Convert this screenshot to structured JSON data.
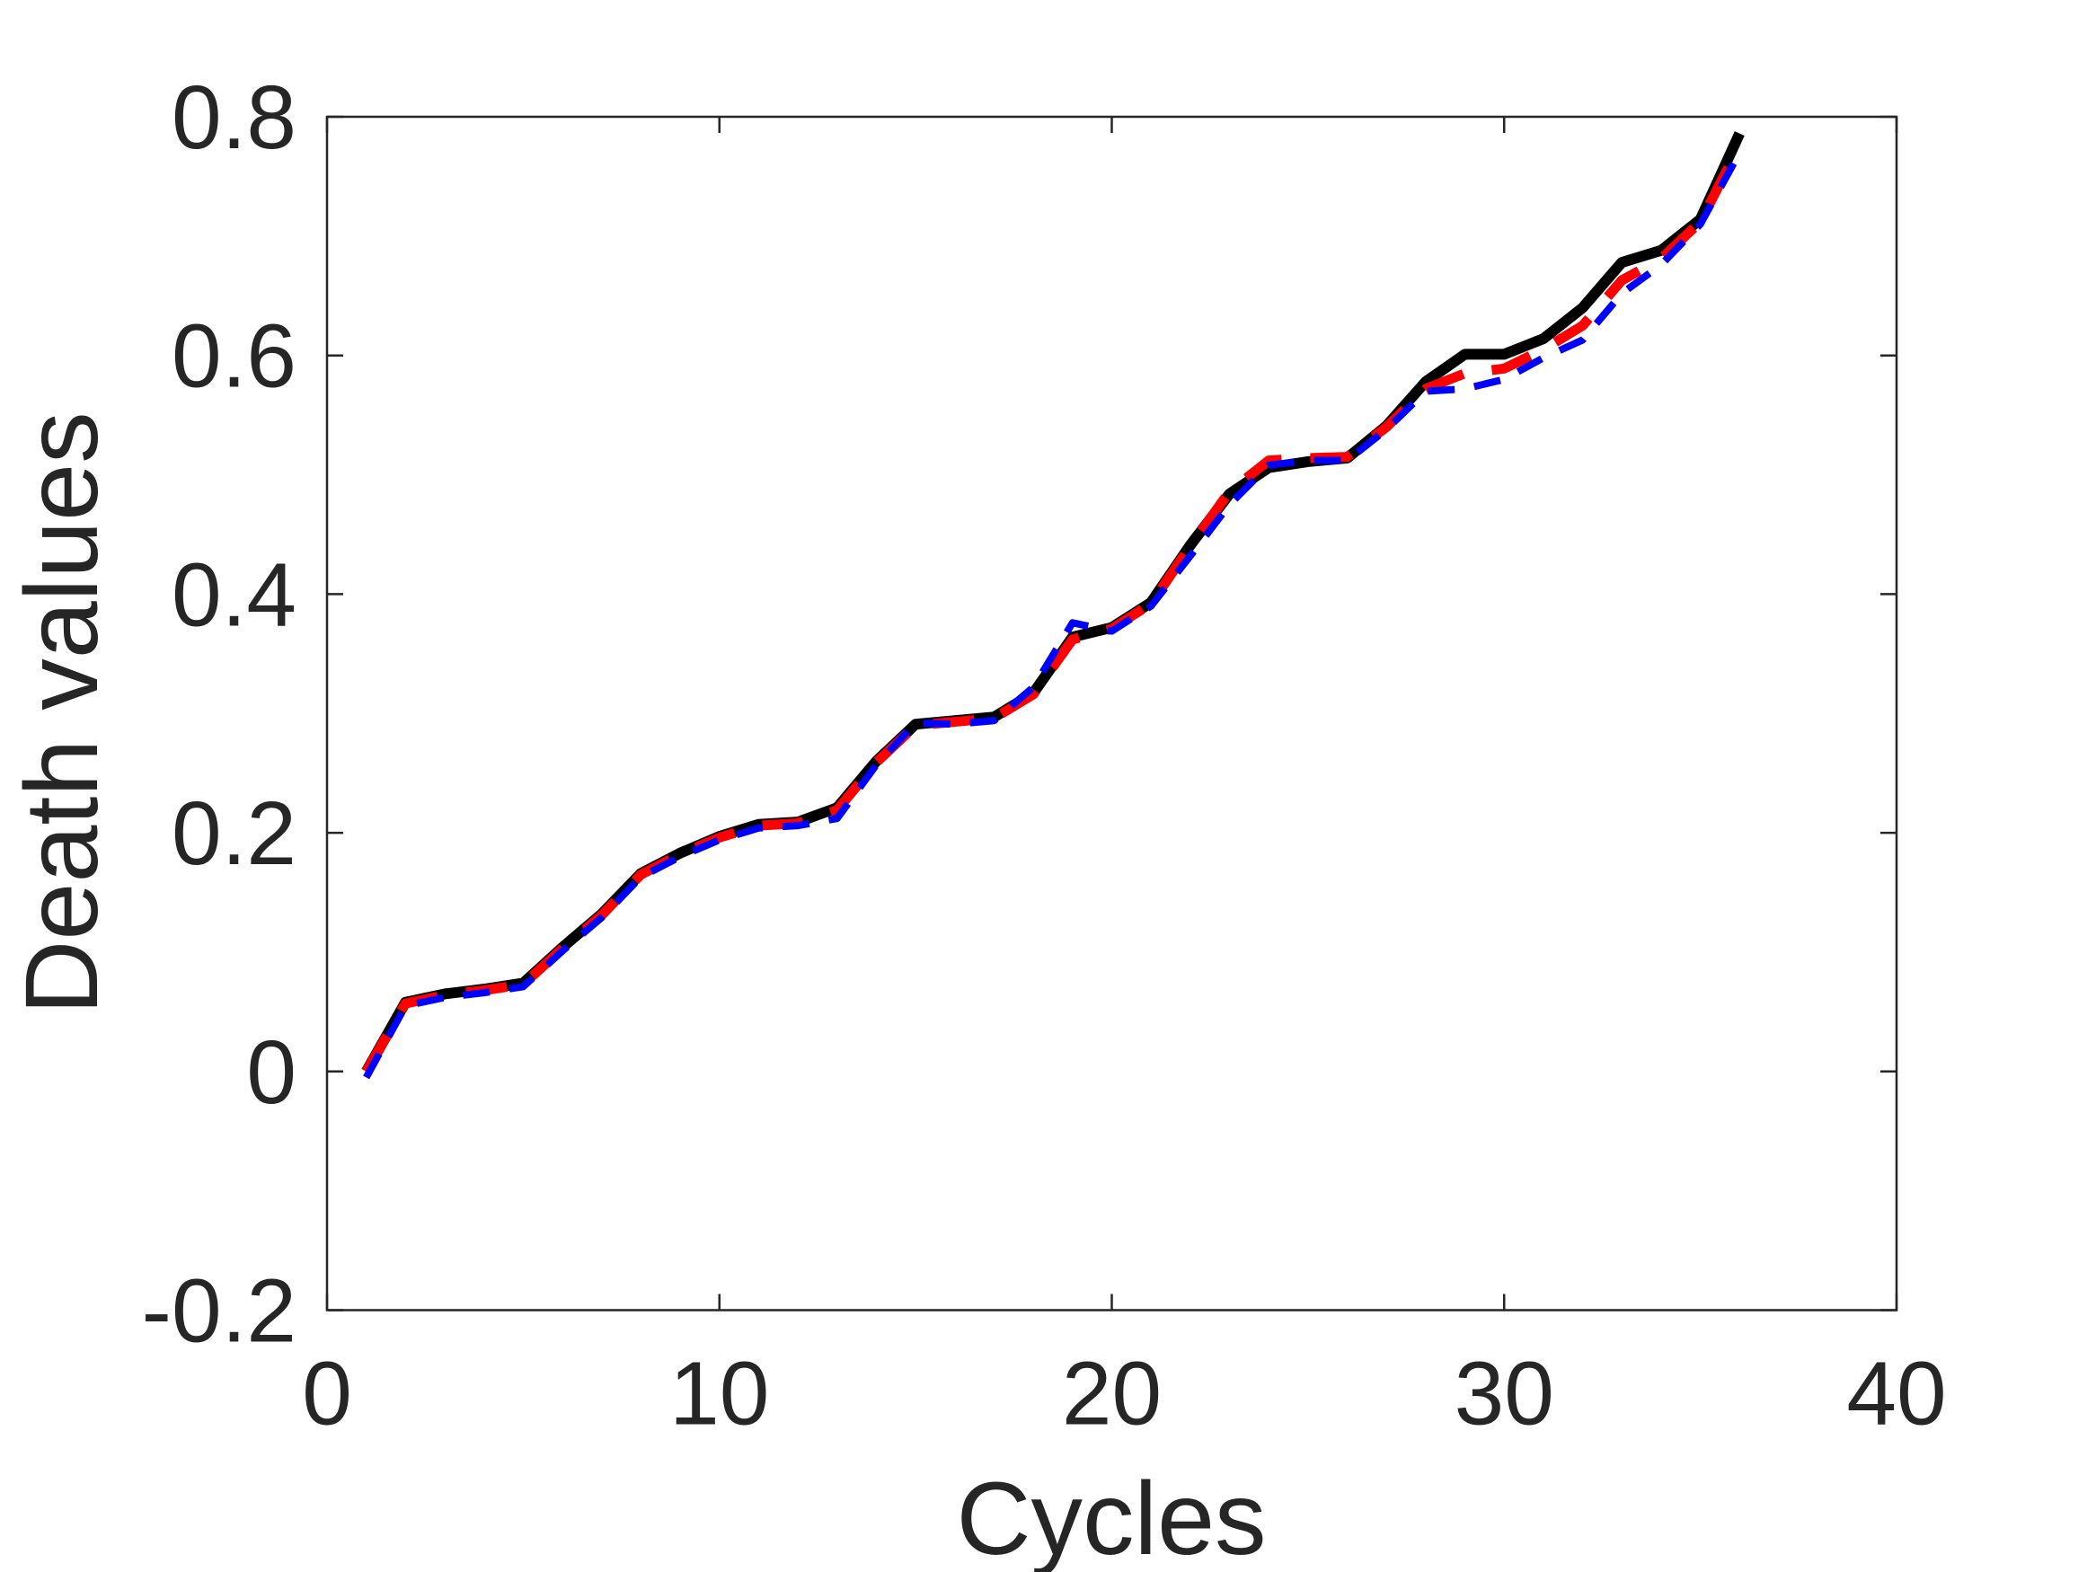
{
  "figure": {
    "background": "#FFFFFF",
    "axis_color": "#262626"
  },
  "chart_data": {
    "type": "line",
    "title": "",
    "xlabel": "Cycles",
    "ylabel": "Death values",
    "xlim": [
      0,
      40
    ],
    "ylim": [
      -0.2,
      0.8
    ],
    "grid": false,
    "legend_position": "none",
    "x_ticks": {
      "values": [
        0,
        10,
        20,
        30,
        40
      ],
      "labels": [
        "0",
        "10",
        "20",
        "30",
        "40"
      ]
    },
    "y_ticks": {
      "values": [
        -0.2,
        0,
        0.2,
        0.4,
        0.6,
        0.8
      ],
      "labels": [
        "-0.2",
        "0",
        "0.2",
        "0.4",
        "0.6",
        "0.8"
      ]
    },
    "x": [
      1,
      2,
      3,
      4,
      5,
      6,
      7,
      8,
      9,
      10,
      11,
      12,
      13,
      14,
      15,
      16,
      17,
      18,
      19,
      20,
      21,
      22,
      23,
      24,
      25,
      26,
      27,
      28,
      29,
      30,
      31,
      32,
      33,
      34,
      35,
      36
    ],
    "series": [
      {
        "name": "black-solid-line",
        "color": "#000000",
        "style": "solid",
        "dash": null,
        "width": 12,
        "values": [
          0.0,
          0.058,
          0.065,
          0.069,
          0.074,
          0.104,
          0.132,
          0.166,
          0.183,
          0.197,
          0.207,
          0.209,
          0.221,
          0.26,
          0.291,
          0.294,
          0.297,
          0.317,
          0.364,
          0.372,
          0.393,
          0.441,
          0.484,
          0.506,
          0.511,
          0.514,
          0.541,
          0.578,
          0.601,
          0.601,
          0.614,
          0.64,
          0.678,
          0.688,
          0.714,
          0.786
        ]
      },
      {
        "name": "red-dashed-line",
        "color": "#FF0000",
        "style": "dashed",
        "dash": [
          46,
          32
        ],
        "width": 11,
        "values": [
          0.0,
          0.057,
          0.064,
          0.068,
          0.073,
          0.103,
          0.131,
          0.165,
          0.182,
          0.196,
          0.206,
          0.208,
          0.219,
          0.259,
          0.29,
          0.293,
          0.296,
          0.316,
          0.362,
          0.371,
          0.392,
          0.44,
          0.486,
          0.512,
          0.514,
          0.515,
          0.54,
          0.572,
          0.585,
          0.589,
          0.605,
          0.625,
          0.663,
          0.681,
          0.712,
          0.776
        ]
      },
      {
        "name": "blue-dashed-line",
        "color": "#0000FF",
        "style": "dashed",
        "dash": [
          30,
          22
        ],
        "width": 8,
        "values": [
          -0.005,
          0.055,
          0.062,
          0.066,
          0.071,
          0.101,
          0.129,
          0.163,
          0.18,
          0.194,
          0.204,
          0.206,
          0.212,
          0.257,
          0.292,
          0.291,
          0.294,
          0.322,
          0.376,
          0.369,
          0.39,
          0.432,
          0.475,
          0.508,
          0.512,
          0.512,
          0.538,
          0.57,
          0.572,
          0.58,
          0.598,
          0.613,
          0.652,
          0.676,
          0.71,
          0.77
        ]
      }
    ]
  }
}
